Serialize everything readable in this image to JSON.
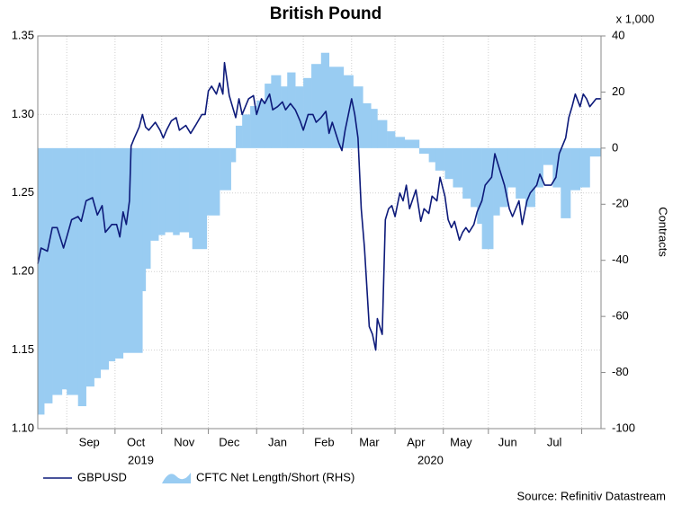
{
  "chart_data": {
    "type": "line",
    "title": "British Pound",
    "y2_unit": "x 1,000",
    "y2_label": "Contracts",
    "source": "Source: Refinitiv Datastream",
    "xlim": [
      0,
      350
    ],
    "xticks": [
      {
        "value": 32,
        "label": "Sep"
      },
      {
        "value": 61,
        "label": "Oct"
      },
      {
        "value": 91,
        "label": "Nov"
      },
      {
        "value": 119,
        "label": "Dec"
      },
      {
        "value": 149,
        "label": "Jan"
      },
      {
        "value": 178,
        "label": "Feb"
      },
      {
        "value": 206,
        "label": "Mar"
      },
      {
        "value": 235,
        "label": "Apr"
      },
      {
        "value": 263,
        "label": "May"
      },
      {
        "value": 292,
        "label": "Jun"
      },
      {
        "value": 321,
        "label": "Jul"
      }
    ],
    "xgrid": [
      18,
      48,
      77,
      106,
      136,
      165,
      195,
      222,
      252,
      280,
      309,
      338
    ],
    "years": [
      {
        "value": 64,
        "label": "2019"
      },
      {
        "value": 244,
        "label": "2020"
      }
    ],
    "ylim": [
      1.1,
      1.35
    ],
    "yticks": [
      {
        "value": 1.1,
        "label": "1.10"
      },
      1.15,
      {
        "value": 1.2,
        "label": "1.20"
      },
      1.25,
      {
        "value": 1.3,
        "label": "1.30"
      },
      1.35
    ],
    "y2lim": [
      -100,
      40
    ],
    "y2ticks": [
      -100,
      -80,
      -60,
      -40,
      -20,
      0,
      20,
      40
    ],
    "grid": true,
    "series": [
      {
        "name": "GBPUSD",
        "color": "#0d1a7a",
        "axis": "y",
        "x": [
          0,
          2,
          6,
          9,
          12,
          16,
          18,
          21,
          25,
          27,
          30,
          34,
          37,
          40,
          42,
          46,
          49,
          51,
          53,
          55,
          57,
          58,
          60,
          63,
          65,
          67,
          69,
          73,
          76,
          78,
          80,
          83,
          86,
          88,
          92,
          95,
          98,
          102,
          104,
          106,
          108,
          111,
          113,
          115,
          116,
          119,
          121,
          123,
          125,
          127,
          131,
          134,
          136,
          139,
          141,
          144,
          146,
          149,
          152,
          154,
          157,
          160,
          163,
          165,
          168,
          171,
          173,
          176,
          179,
          181,
          183,
          187,
          189,
          191,
          195,
          197,
          199,
          201,
          203,
          206,
          208,
          210,
          211,
          214,
          216,
          218,
          220,
          222,
          225,
          227,
          229,
          231,
          235,
          238,
          240,
          243,
          245,
          248,
          250,
          253,
          255,
          257,
          259,
          262,
          264,
          266,
          268,
          271,
          273,
          276,
          278,
          282,
          284,
          287,
          290,
          293,
          295,
          299,
          301,
          304,
          306,
          310,
          312,
          315,
          319,
          322,
          324,
          328,
          330,
          332,
          334,
          337,
          339,
          341,
          343,
          347,
          350
        ],
        "values": [
          1.205,
          1.215,
          1.213,
          1.228,
          1.228,
          1.215,
          1.222,
          1.233,
          1.235,
          1.232,
          1.245,
          1.247,
          1.236,
          1.242,
          1.225,
          1.23,
          1.23,
          1.222,
          1.238,
          1.23,
          1.245,
          1.28,
          1.285,
          1.292,
          1.3,
          1.292,
          1.29,
          1.295,
          1.29,
          1.285,
          1.29,
          1.296,
          1.298,
          1.29,
          1.293,
          1.288,
          1.293,
          1.3,
          1.3,
          1.315,
          1.318,
          1.313,
          1.32,
          1.313,
          1.333,
          1.312,
          1.305,
          1.298,
          1.31,
          1.3,
          1.31,
          1.312,
          1.3,
          1.31,
          1.307,
          1.313,
          1.303,
          1.305,
          1.308,
          1.303,
          1.307,
          1.303,
          1.296,
          1.29,
          1.3,
          1.3,
          1.295,
          1.298,
          1.302,
          1.288,
          1.295,
          1.282,
          1.277,
          1.29,
          1.31,
          1.3,
          1.285,
          1.24,
          1.215,
          1.165,
          1.16,
          1.15,
          1.17,
          1.16,
          1.233,
          1.24,
          1.242,
          1.235,
          1.25,
          1.245,
          1.255,
          1.24,
          1.252,
          1.232,
          1.24,
          1.237,
          1.248,
          1.245,
          1.26,
          1.248,
          1.233,
          1.228,
          1.232,
          1.22,
          1.225,
          1.228,
          1.225,
          1.23,
          1.238,
          1.245,
          1.255,
          1.26,
          1.275,
          1.265,
          1.255,
          1.24,
          1.235,
          1.245,
          1.23,
          1.245,
          1.25,
          1.255,
          1.262,
          1.255,
          1.255,
          1.26,
          1.275,
          1.285,
          1.298,
          1.305,
          1.313,
          1.305,
          1.313,
          1.31,
          1.305,
          1.31,
          1.31
        ]
      },
      {
        "name": "CFTC Net Length/Short (RHS)",
        "color": "#99ccf2",
        "axis": "y2",
        "type": "area",
        "x": [
          0,
          4,
          9,
          15,
          18,
          25,
          30,
          35,
          39,
          44,
          48,
          53,
          65,
          67,
          70,
          75,
          79,
          84,
          88,
          94,
          96,
          105,
          113,
          120,
          123,
          127,
          132,
          136,
          141,
          145,
          151,
          155,
          160,
          165,
          170,
          176,
          181,
          190,
          196,
          202,
          207,
          211,
          217,
          222,
          228,
          237,
          243,
          247,
          253,
          258,
          264,
          269,
          273,
          276,
          283,
          287,
          292,
          297,
          303,
          309,
          314,
          320,
          325,
          331,
          337,
          343
        ],
        "values": [
          -95,
          -91,
          -88,
          -86,
          -88,
          -92,
          -85,
          -82,
          -79,
          -76,
          -75,
          -73,
          -51,
          -43,
          -33,
          -31,
          -30,
          -31,
          -30,
          -32,
          -36,
          -24,
          -15,
          -5,
          8,
          12,
          15,
          17,
          23,
          26,
          22,
          27,
          22,
          25,
          30,
          34,
          29,
          26,
          22,
          16,
          14,
          10,
          6,
          4,
          3,
          -2,
          -5,
          -8,
          -11,
          -14,
          -18,
          -21,
          -27,
          -36,
          -24,
          -21,
          -14,
          -18,
          -21,
          -14,
          -6,
          -14,
          -25,
          -15,
          -14,
          -3
        ]
      }
    ]
  }
}
